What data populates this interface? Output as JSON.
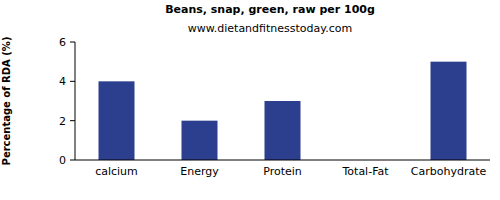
{
  "chart_data": {
    "type": "bar",
    "title": "Beans, snap, green, raw per 100g",
    "subtitle": "www.dietandfitnesstoday.com",
    "y_label": "Percentage of RDA (%)",
    "categories": [
      "calcium",
      "Energy",
      "Protein",
      "Total-Fat",
      "Carbohydrate"
    ],
    "values": [
      4,
      2,
      3,
      0,
      5
    ],
    "color": "#2b3f8e",
    "ylim": [
      0,
      6
    ],
    "yticks": [
      0,
      2,
      4,
      6
    ],
    "grid": false
  }
}
